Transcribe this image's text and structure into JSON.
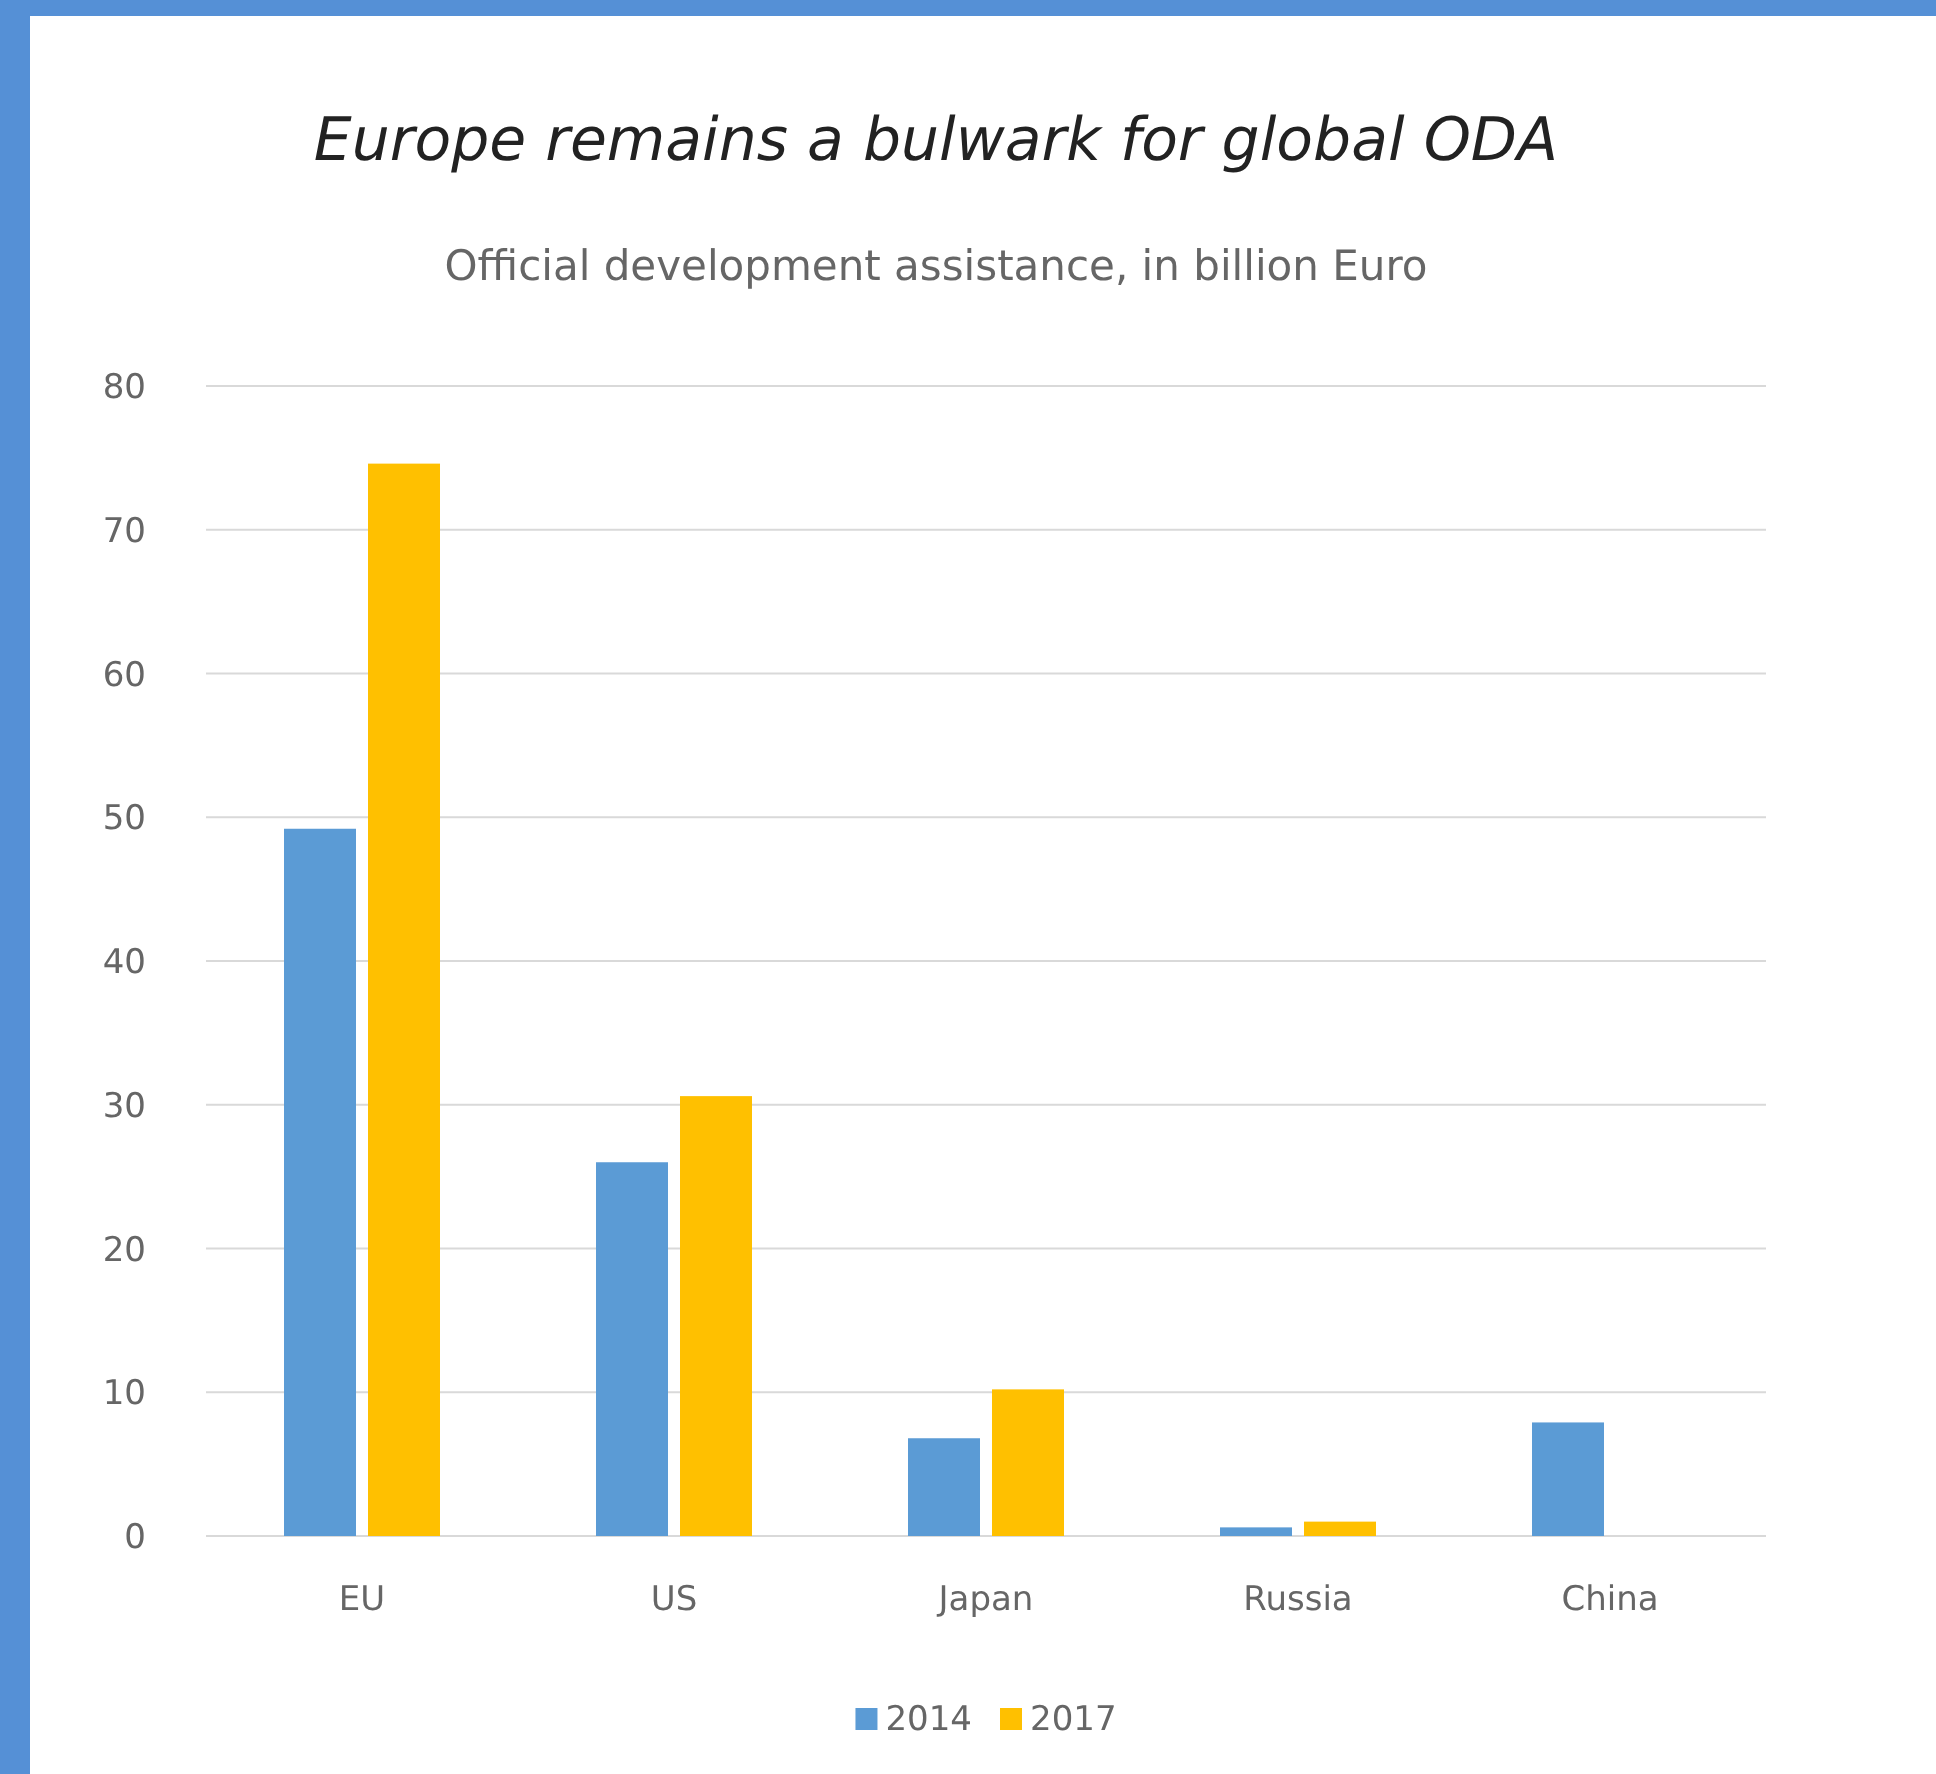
{
  "chart_data": {
    "type": "bar",
    "title": "Europe remains a bulwark for global ODA",
    "subtitle": "Official development assistance, in billion Euro",
    "categories": [
      "EU",
      "US",
      "Japan",
      "Russia",
      "China"
    ],
    "series": [
      {
        "name": "2014",
        "color": "#5b9bd5",
        "values": [
          49.2,
          26.0,
          6.8,
          0.6,
          7.9
        ]
      },
      {
        "name": "2017",
        "color": "#ffc000",
        "values": [
          74.6,
          30.6,
          10.2,
          1.0,
          null
        ]
      }
    ],
    "ylim": [
      0,
      80
    ],
    "yticks": [
      0,
      10,
      20,
      30,
      40,
      50,
      60,
      70,
      80
    ],
    "grid": "y",
    "legend": "bottom"
  }
}
